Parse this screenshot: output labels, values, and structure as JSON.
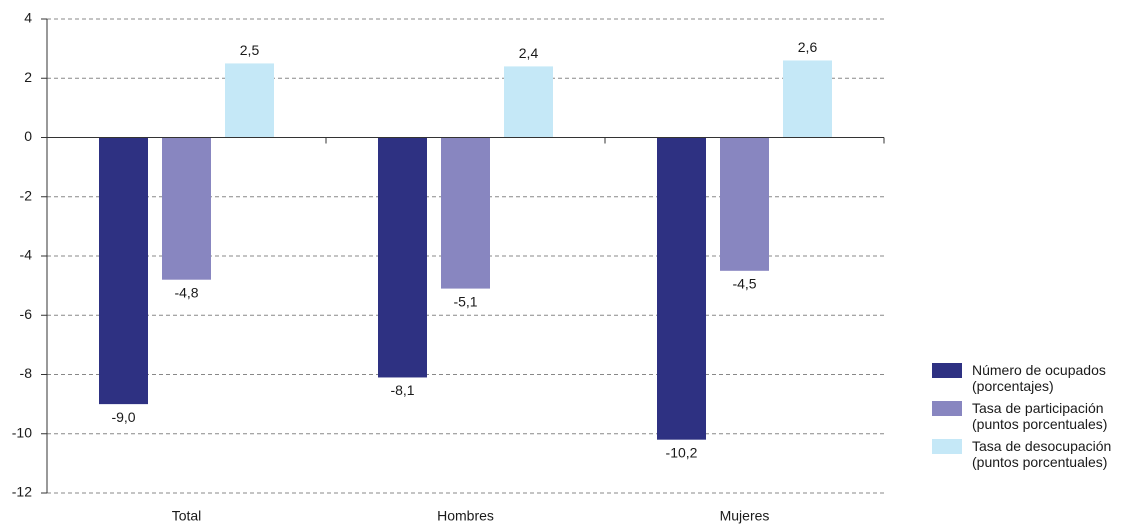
{
  "chart_data": {
    "type": "bar",
    "categories": [
      "Total",
      "Hombres",
      "Mujeres"
    ],
    "series": [
      {
        "name": "Número de ocupados\n(porcentajes)",
        "color": "#2e3182",
        "values": [
          -9.0,
          -8.1,
          -10.2
        ],
        "value_labels": [
          "-9,0",
          "-8,1",
          "-10,2"
        ]
      },
      {
        "name": "Tasa de participación\n(puntos porcentuales)",
        "color": "#8886c0",
        "values": [
          -4.8,
          -5.1,
          -4.5
        ],
        "value_labels": [
          "-4,8",
          "-5,1",
          "-4,5"
        ]
      },
      {
        "name": "Tasa de desocupación\n(puntos porcentuales)",
        "color": "#c5e8f7",
        "values": [
          2.5,
          2.4,
          2.6
        ],
        "value_labels": [
          "2,5",
          "2,4",
          "2,6"
        ]
      }
    ],
    "ylim": [
      -12,
      4
    ],
    "yticks": [
      -12,
      -10,
      -8,
      -6,
      -4,
      -2,
      0,
      2,
      4
    ],
    "grid": true
  }
}
